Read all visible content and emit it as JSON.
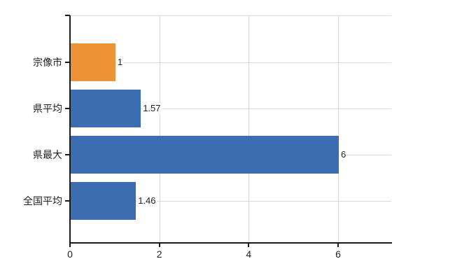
{
  "chart_data": {
    "type": "bar",
    "orientation": "horizontal",
    "title": "",
    "xlabel": "",
    "ylabel": "",
    "categories": [
      "宗像市",
      "県平均",
      "県最大",
      "全国平均"
    ],
    "values": [
      1,
      1.57,
      6,
      1.46
    ],
    "value_labels": [
      "1",
      "1.57",
      "6",
      "1.46"
    ],
    "bar_colors": [
      "#EC9338",
      "#3C6DB0",
      "#3C6DB0",
      "#3C6DB0"
    ],
    "xlim": [
      0,
      7.2
    ],
    "xticks": [
      0,
      2,
      4,
      6
    ],
    "xtick_labels": [
      "0",
      "2",
      "4",
      "6"
    ],
    "grid": true,
    "legend": "none"
  },
  "colors": {
    "bar_blue": "#3C6DB0",
    "bar_orange": "#EC9338",
    "gridline": "#D9D9D9",
    "axis": "#1A1A1A",
    "text": "#222222",
    "background": "#FFFFFF"
  }
}
